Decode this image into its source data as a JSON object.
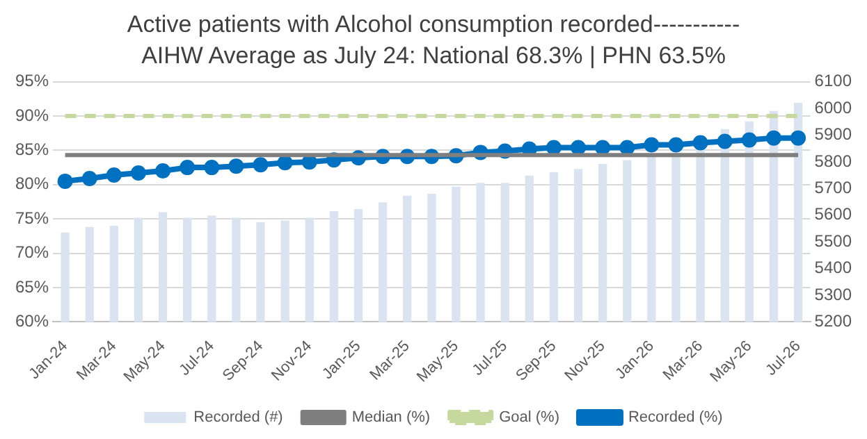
{
  "chart_data": {
    "type": "bar",
    "title": "Active patients with Alcohol consumption recorded-----------",
    "subtitle": "AIHW Average as July 24: National 68.3% | PHN 63.5%",
    "categories": [
      "Jan-24",
      null,
      "Mar-24",
      null,
      "May-24",
      null,
      "Jul-24",
      null,
      "Sep-24",
      null,
      "Nov-24",
      null,
      "Jan-25",
      null,
      "Mar-25",
      null,
      "May-25",
      null,
      "Jul-25",
      null,
      "Sep-25",
      null,
      "Nov-25",
      null,
      "Jan-26",
      null,
      "Mar-26",
      null,
      "May-26",
      null,
      "Jul-26"
    ],
    "series": [
      {
        "name": "Recorded (#)",
        "axis": "y2",
        "color": "#dae3f0",
        "values": [
          5535,
          5556,
          5560,
          5590,
          5611,
          5590,
          5599,
          5590,
          5574,
          5580,
          5590,
          5615,
          5623,
          5648,
          5673,
          5680,
          5707,
          5721,
          5721,
          5748,
          5761,
          5773,
          5792,
          5806,
          5830,
          5835,
          5845,
          5922,
          5951,
          5990,
          6021
        ]
      },
      {
        "name": "Median (%)",
        "type": "line",
        "color": "#7f7f7f",
        "marker": "none",
        "line_style": "solid",
        "values": [
          84.3,
          84.3,
          84.3,
          84.3,
          84.3,
          84.3,
          84.3,
          84.3,
          84.3,
          84.3,
          84.3,
          84.3,
          84.3,
          84.3,
          84.3,
          84.3,
          84.3,
          84.3,
          84.3,
          84.3,
          84.3,
          84.3,
          84.3,
          84.3,
          84.3,
          84.3,
          84.3,
          84.3,
          84.3,
          84.3,
          84.3
        ]
      },
      {
        "name": "Goal (%)",
        "type": "line",
        "color": "#c5d89e",
        "marker": "none",
        "line_style": "dashed",
        "values": [
          90,
          90,
          90,
          90,
          90,
          90,
          90,
          90,
          90,
          90,
          90,
          90,
          90,
          90,
          90,
          90,
          90,
          90,
          90,
          90,
          90,
          90,
          90,
          90,
          90,
          90,
          90,
          90,
          90,
          90,
          90
        ]
      },
      {
        "name": "Recorded (%)",
        "type": "line",
        "color": "#0070c0",
        "marker": "circle",
        "line_style": "solid",
        "values": [
          80.5,
          80.9,
          81.4,
          81.7,
          82.0,
          82.5,
          82.5,
          82.7,
          82.9,
          83.2,
          83.3,
          83.6,
          83.9,
          84.1,
          84.1,
          84.1,
          84.2,
          84.7,
          84.9,
          85.2,
          85.4,
          85.4,
          85.4,
          85.4,
          85.8,
          85.8,
          86.1,
          86.3,
          86.5,
          86.8,
          86.8
        ]
      }
    ],
    "ylim": [
      60,
      95
    ],
    "yticks": [
      {
        "value": 60,
        "label": "60%"
      },
      {
        "value": 65,
        "label": "65%"
      },
      {
        "value": 70,
        "label": "70%"
      },
      {
        "value": 75,
        "label": "75%"
      },
      {
        "value": 80,
        "label": "80%"
      },
      {
        "value": 85,
        "label": "85%"
      },
      {
        "value": 90,
        "label": "90%"
      },
      {
        "value": 95,
        "label": "95%"
      }
    ],
    "y2lim": [
      5200,
      6100
    ],
    "y2ticks": [
      5200,
      5300,
      5400,
      5500,
      5600,
      5700,
      5800,
      5900,
      6000,
      6100
    ],
    "grid": "y",
    "legend": "bottom"
  }
}
